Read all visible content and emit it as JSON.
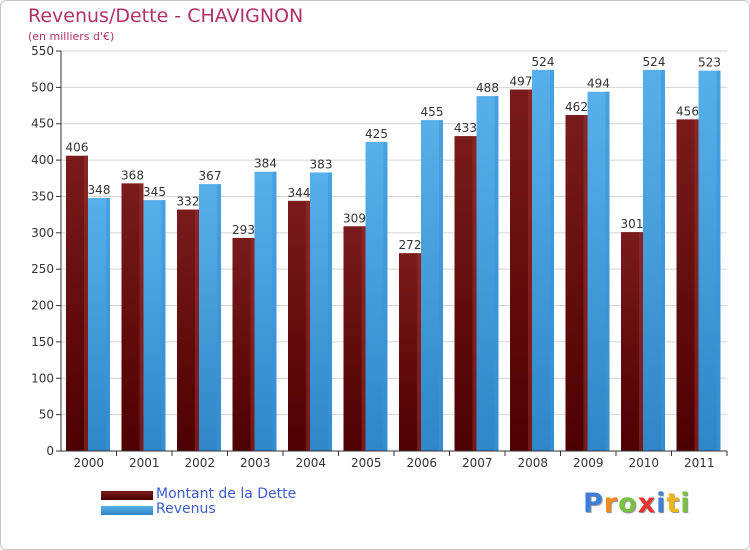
{
  "colors": {
    "dette_top": "#7a1b1b",
    "dette_bottom": "#4d0000",
    "dette_side": "#9b3030",
    "revenus_top": "#58b0ea",
    "revenus_bottom": "#2f86c8",
    "revenus_side": "#3b93d8",
    "title": "#b0306a",
    "legend_text": "#3d5ccc",
    "axis": "#333333",
    "grid": "#d4d4d4"
  },
  "chart": {
    "title": "Revenus/Dette - CHAVIGNON",
    "unit": "(en milliers d'€)"
  },
  "chart_data": {
    "type": "bar",
    "title": "Revenus/Dette - CHAVIGNON",
    "ylabel": "(en milliers d'€)",
    "xlabel": "",
    "ylim": [
      0,
      550
    ],
    "yticks": [
      0,
      50,
      100,
      150,
      200,
      250,
      300,
      350,
      400,
      450,
      500,
      550
    ],
    "grid": true,
    "legend_position": "bottom-left",
    "categories": [
      "2000",
      "2001",
      "2002",
      "2003",
      "2004",
      "2005",
      "2006",
      "2007",
      "2008",
      "2009",
      "2010",
      "2011"
    ],
    "series": [
      {
        "name": "Montant de la Dette",
        "values": [
          406,
          368,
          332,
          293,
          344,
          309,
          272,
          433,
          497,
          462,
          301,
          456
        ]
      },
      {
        "name": "Revenus",
        "values": [
          348,
          345,
          367,
          384,
          383,
          425,
          455,
          488,
          524,
          494,
          524,
          523
        ]
      }
    ]
  },
  "legend": {
    "items": [
      {
        "label": "Montant de la Dette"
      },
      {
        "label": "Revenus"
      }
    ]
  },
  "logo": {
    "letters": [
      "P",
      "r",
      "o",
      "x",
      "i",
      "t",
      "i"
    ],
    "letter_colors": [
      "#3d7fd8",
      "#f08a1c",
      "#7ac143",
      "#e6322e",
      "#3d7fd8",
      "#f0b41c",
      "#7ac143"
    ]
  }
}
